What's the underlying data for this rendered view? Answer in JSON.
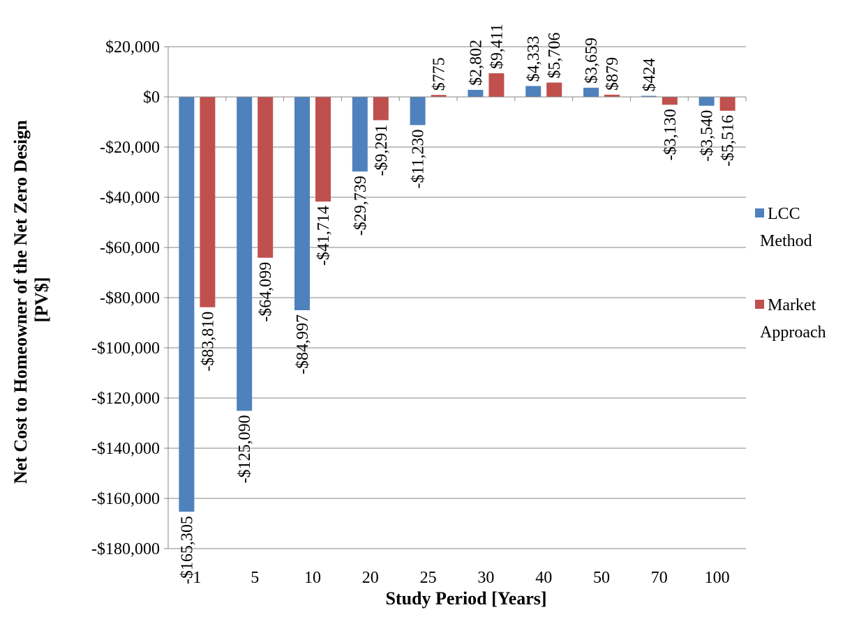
{
  "chart_data": {
    "type": "bar",
    "title": "",
    "xlabel": "Study Period [Years]",
    "ylabel_line1": "Net Cost to Homeowner of the Net Zero Design",
    "ylabel_line2": "[PV$]",
    "categories": [
      "1",
      "5",
      "10",
      "20",
      "25",
      "30",
      "40",
      "50",
      "70",
      "100"
    ],
    "ylim": [
      -180000,
      20000
    ],
    "ytick_values": [
      20000,
      0,
      -20000,
      -40000,
      -60000,
      -80000,
      -100000,
      -120000,
      -140000,
      -160000,
      -180000
    ],
    "ytick_labels": [
      "$20,000",
      "$0",
      "-$20,000",
      "-$40,000",
      "-$60,000",
      "-$80,000",
      "-$100,000",
      "-$120,000",
      "-$140,000",
      "-$160,000",
      "-$180,000"
    ],
    "grid": true,
    "legend_position": "right",
    "series": [
      {
        "name_line1": "LCC",
        "name_line2": "Method",
        "color": "#4F81BD",
        "values": [
          -165305,
          -125090,
          -84997,
          -29739,
          -11230,
          2802,
          4333,
          3659,
          424,
          -3540
        ],
        "labels": [
          "-$165,305",
          "-$125,090",
          "-$84,997",
          "-$29,739",
          "-$11,230",
          "$2,802",
          "$4,333",
          "$3,659",
          "$424",
          "-$3,540"
        ]
      },
      {
        "name_line1": "Market",
        "name_line2": "Approach",
        "color": "#C0504D",
        "values": [
          -83810,
          -64099,
          -41714,
          -9291,
          775,
          9411,
          5706,
          879,
          -3130,
          -5516
        ],
        "labels": [
          "-$83,810",
          "-$64,099",
          "-$41,714",
          "-$9,291",
          "$775",
          "$9,411",
          "$5,706",
          "$879",
          "-$3,130",
          "-$5,516"
        ]
      }
    ]
  }
}
